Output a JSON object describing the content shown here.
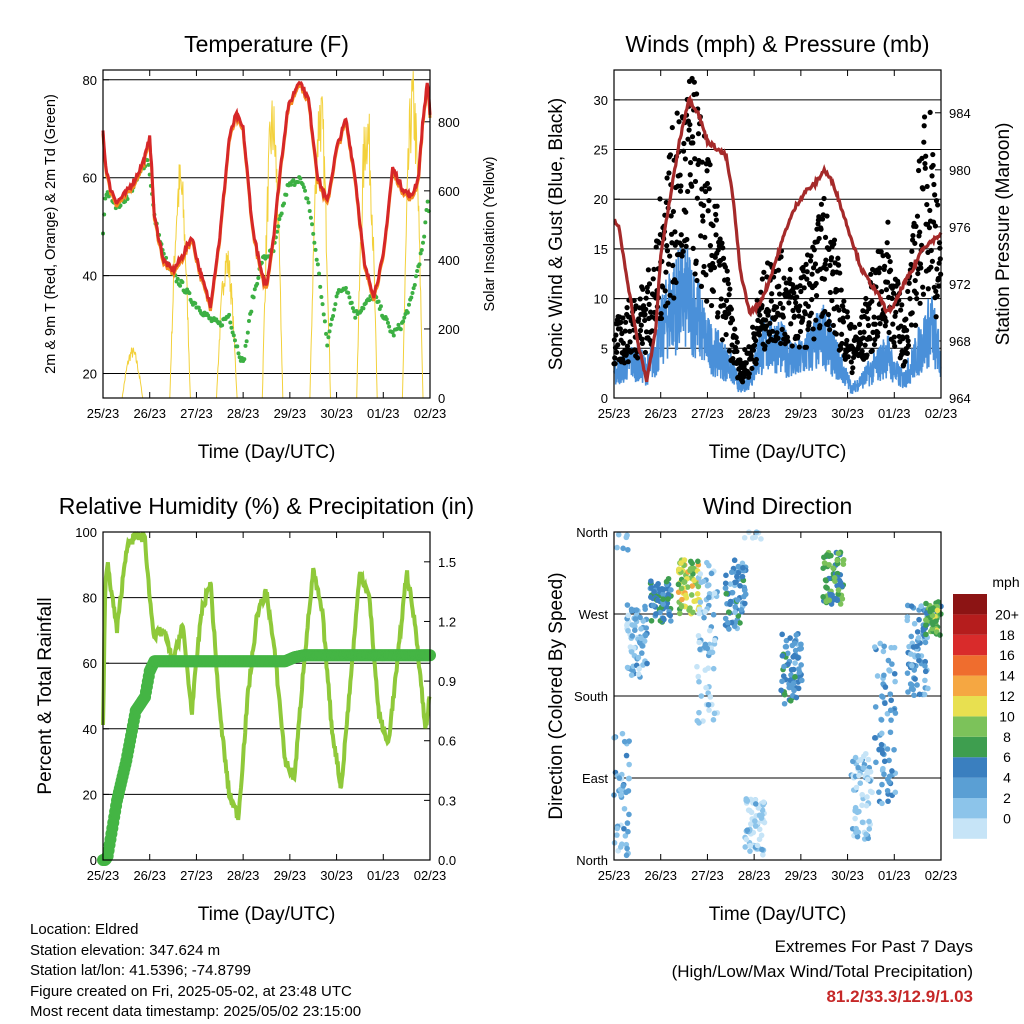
{
  "time_ticks": [
    "25/23",
    "26/23",
    "27/23",
    "28/23",
    "29/23",
    "30/23",
    "01/23",
    "02/23"
  ],
  "panels": {
    "temperature": {
      "title": "Temperature (F)",
      "xlabel": "Time (Day/UTC)",
      "ylabel_left": "2m & 9m T (Red, Orange) & 2m Td (Green)",
      "ylabel_right": "Solar Insolation (Yellow)",
      "yticks_left": [
        "20",
        "40",
        "60",
        "80"
      ],
      "yticks_right": [
        "0",
        "200",
        "400",
        "600",
        "800"
      ]
    },
    "winds": {
      "title": "Winds (mph) & Pressure (mb)",
      "xlabel": "Time (Day/UTC)",
      "ylabel_left": "Sonic Wind & Gust (Blue, Black)",
      "ylabel_right": "Station Pressure (Maroon)",
      "yticks_left": [
        "0",
        "5",
        "10",
        "15",
        "20",
        "25",
        "30"
      ],
      "yticks_right": [
        "964",
        "968",
        "972",
        "976",
        "980",
        "984"
      ]
    },
    "humidity": {
      "title": "Relative Humidity (%) & Precipitation (in)",
      "xlabel": "Time (Day/UTC)",
      "ylabel_left": "Percent & Total Rainfall",
      "yticks_left": [
        "0",
        "20",
        "40",
        "60",
        "80",
        "100"
      ],
      "yticks_right": [
        "0.0",
        "0.3",
        "0.6",
        "0.9",
        "1.2",
        "1.5"
      ]
    },
    "direction": {
      "title": "Wind Direction",
      "xlabel": "Time (Day/UTC)",
      "ylabel_left": "Direction (Colored By Speed)",
      "yticks_left": [
        "North",
        "East",
        "South",
        "West",
        "North"
      ],
      "legend_title": "mph",
      "legend_labels": [
        "0",
        "2",
        "4",
        "6",
        "8",
        "10",
        "12",
        "14",
        "16",
        "18",
        "20+"
      ]
    }
  },
  "chart_data": [
    {
      "type": "line",
      "title": "Temperature (F)",
      "xlabel": "Time (Day/UTC)",
      "ylabel": "2m & 9m T (Red, Orange) & 2m Td (Green)",
      "ylim": [
        15,
        82
      ],
      "y2lim": [
        0,
        950
      ],
      "x_days": [
        0,
        0.05,
        0.15,
        0.3,
        0.5,
        0.7,
        0.85,
        0.95,
        1.0,
        1.1,
        1.3,
        1.5,
        1.7,
        1.9,
        2.1,
        2.3,
        2.5,
        2.7,
        2.85,
        3.0,
        3.2,
        3.4,
        3.5,
        3.65,
        3.8,
        3.95,
        4.2,
        4.4,
        4.6,
        4.8,
        5.0,
        5.2,
        5.4,
        5.6,
        5.8,
        6.0,
        6.2,
        6.4,
        6.6,
        6.75,
        6.85,
        6.95,
        7.0
      ],
      "series": [
        {
          "name": "2m T",
          "color": "#d62728",
          "values": [
            70,
            63,
            58,
            55,
            57,
            60,
            63,
            66,
            69,
            52,
            43,
            41,
            44,
            48,
            40,
            34,
            48,
            68,
            73,
            70,
            50,
            40,
            38,
            48,
            62,
            74,
            80,
            76,
            60,
            55,
            66,
            72,
            60,
            42,
            36,
            44,
            62,
            58,
            56,
            60,
            72,
            80,
            73
          ]
        },
        {
          "name": "2m Td",
          "color": "#3cb043",
          "values": [
            48,
            56,
            57,
            54,
            56,
            59,
            62,
            64,
            61,
            52,
            44,
            40,
            38,
            35,
            33,
            31,
            30,
            32,
            26,
            22,
            35,
            43,
            44,
            45,
            52,
            58,
            60,
            55,
            42,
            26,
            36,
            38,
            32,
            34,
            36,
            32,
            28,
            30,
            35,
            42,
            46,
            55,
            51
          ]
        }
      ],
      "solar_peaks_days": [
        0.63,
        1.65,
        2.65,
        3.63,
        4.65,
        5.65,
        6.63
      ],
      "solar_peaks_wm2": [
        150,
        700,
        450,
        890,
        930,
        880,
        960
      ]
    },
    {
      "type": "line",
      "title": "Winds (mph) & Pressure (mb)",
      "xlabel": "Time (Day/UTC)",
      "ylabel": "Sonic Wind & Gust (Blue, Black)",
      "ylim": [
        0,
        33
      ],
      "y2lim": [
        964,
        987
      ],
      "x_days": [
        0,
        0.1,
        0.3,
        0.5,
        0.7,
        0.9,
        1.0,
        1.2,
        1.4,
        1.6,
        1.8,
        2.0,
        2.2,
        2.4,
        2.55,
        2.7,
        2.9,
        3.1,
        3.3,
        3.5,
        3.7,
        3.9,
        4.1,
        4.3,
        4.5,
        4.7,
        4.9,
        5.1,
        5.3,
        5.5,
        5.7,
        5.85,
        6.0,
        6.2,
        6.4,
        6.6,
        6.8,
        7.0
      ],
      "series": [
        {
          "name": "Sonic Wind",
          "color": "#4a90d9",
          "values": [
            3,
            3,
            4,
            4,
            3,
            5,
            7,
            10,
            11,
            11,
            9,
            6,
            5,
            4,
            3,
            1,
            2,
            5,
            6,
            6,
            5,
            4,
            5,
            6,
            7,
            5,
            3,
            1,
            2,
            3,
            4,
            5,
            3,
            2,
            4,
            6,
            8,
            4
          ]
        },
        {
          "name": "Gust",
          "color": "#000000",
          "values": [
            5,
            6,
            7,
            8,
            9,
            11,
            15,
            19,
            21,
            24,
            22,
            18,
            14,
            10,
            6,
            3,
            4,
            8,
            10,
            11,
            10,
            9,
            10,
            12,
            15,
            12,
            8,
            5,
            6,
            9,
            11,
            13,
            10,
            6,
            12,
            20,
            22,
            10
          ]
        },
        {
          "name": "Station Pressure",
          "color": "#a52a2a",
          "values": [
            976.5,
            976,
            972,
            968,
            965.2,
            969,
            974,
            978,
            982,
            985,
            984,
            982,
            981.5,
            981,
            978,
            973,
            970,
            970.5,
            972,
            974,
            976,
            977.5,
            978.5,
            979,
            980,
            979,
            977,
            975,
            973,
            972,
            971,
            970,
            970.5,
            972,
            973,
            974.5,
            975,
            975.5
          ]
        }
      ]
    },
    {
      "type": "line",
      "title": "Relative Humidity (%) & Precipitation (in)",
      "xlabel": "Time (Day/UTC)",
      "ylabel": "Percent & Total Rainfall",
      "ylim": [
        0,
        100
      ],
      "y2lim": [
        0,
        1.65
      ],
      "x_days": [
        0,
        0.05,
        0.1,
        0.3,
        0.5,
        0.7,
        0.9,
        1.0,
        1.1,
        1.3,
        1.5,
        1.7,
        1.9,
        2.1,
        2.3,
        2.5,
        2.7,
        2.9,
        3.1,
        3.3,
        3.5,
        3.7,
        3.9,
        4.1,
        4.3,
        4.5,
        4.7,
        4.9,
        5.1,
        5.3,
        5.5,
        5.7,
        5.9,
        6.1,
        6.3,
        6.5,
        6.7,
        6.9,
        7.0
      ],
      "series": [
        {
          "name": "Relative Humidity",
          "color": "#8fc93a",
          "values": [
            40,
            85,
            90,
            70,
            95,
            99,
            98,
            80,
            68,
            70,
            60,
            72,
            45,
            75,
            85,
            45,
            20,
            13,
            50,
            75,
            82,
            60,
            30,
            25,
            60,
            88,
            75,
            40,
            22,
            55,
            88,
            80,
            45,
            35,
            60,
            88,
            70,
            40,
            50
          ]
        },
        {
          "name": "Total Rainfall",
          "color": "#44b544",
          "values": [
            0,
            0,
            0.02,
            0.3,
            0.5,
            0.75,
            0.82,
            0.95,
            1.0,
            1.0,
            1.0,
            1.0,
            1.0,
            1.0,
            1.0,
            1.0,
            1.0,
            1.0,
            1.0,
            1.0,
            1.0,
            1.0,
            1.0,
            1.02,
            1.03,
            1.03,
            1.03,
            1.03,
            1.03,
            1.03,
            1.03,
            1.03,
            1.03,
            1.03,
            1.03,
            1.03,
            1.03,
            1.03,
            1.03
          ]
        }
      ]
    },
    {
      "type": "scatter",
      "title": "Wind Direction",
      "xlabel": "Time (Day/UTC)",
      "ylabel": "Direction (Colored By Speed)",
      "ylim": [
        0,
        360
      ],
      "colorbar": {
        "title": "mph",
        "labels": [
          "0",
          "2",
          "4",
          "6",
          "8",
          "10",
          "12",
          "14",
          "16",
          "18",
          "20+"
        ],
        "colors": [
          "#c6e4f7",
          "#8cc4ea",
          "#5a9fd4",
          "#3a7fbf",
          "#3e9e4f",
          "#7cc25a",
          "#e8e050",
          "#f5a742",
          "#ef6d2e",
          "#d92b2b",
          "#b51d1d",
          "#8c1414"
        ]
      },
      "clusters": [
        {
          "day": 0.1,
          "dir_center": 60,
          "dir_spread": 80,
          "speed": 3
        },
        {
          "day": 0.5,
          "dir_center": 240,
          "dir_spread": 40,
          "speed": 3
        },
        {
          "day": 1.0,
          "dir_center": 285,
          "dir_spread": 25,
          "speed": 6
        },
        {
          "day": 1.6,
          "dir_center": 300,
          "dir_spread": 30,
          "speed": 11
        },
        {
          "day": 2.0,
          "dir_center": 240,
          "dir_spread": 90,
          "speed": 2
        },
        {
          "day": 2.6,
          "dir_center": 290,
          "dir_spread": 40,
          "speed": 5
        },
        {
          "day": 3.0,
          "dir_center": 30,
          "dir_spread": 40,
          "speed": 1
        },
        {
          "day": 3.8,
          "dir_center": 210,
          "dir_spread": 40,
          "speed": 5
        },
        {
          "day": 4.7,
          "dir_center": 310,
          "dir_spread": 30,
          "speed": 8
        },
        {
          "day": 5.3,
          "dir_center": 70,
          "dir_spread": 50,
          "speed": 2
        },
        {
          "day": 5.8,
          "dir_center": 150,
          "dir_spread": 90,
          "speed": 4
        },
        {
          "day": 6.5,
          "dir_center": 230,
          "dir_spread": 50,
          "speed": 4
        },
        {
          "day": 6.9,
          "dir_center": 265,
          "dir_spread": 20,
          "speed": 9
        }
      ]
    }
  ],
  "info": {
    "location": "Location: Eldred",
    "elevation": "Station elevation: 347.624 m",
    "latlon": "Station lat/lon: 41.5396; -74.8799",
    "created": "Figure created on Fri, 2025-05-02, at 23:48 UTC",
    "timestamp": "Most recent data timestamp: 2025/05/02 23:15:00"
  },
  "extremes": {
    "line1": "Extremes For Past 7 Days",
    "line2": "(High/Low/Max Wind/Total Precipitation)",
    "values": "81.2/33.3/12.9/1.03"
  }
}
